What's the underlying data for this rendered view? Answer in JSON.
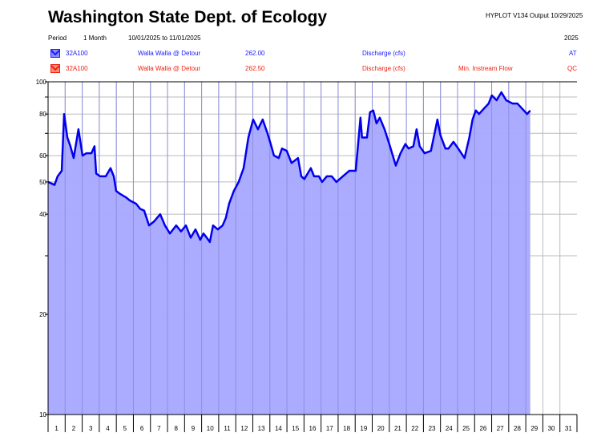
{
  "header": {
    "title": "Washington State Dept. of Ecology",
    "program": "HYPLOT V134  Output 10/29/2025",
    "period_label": "Period",
    "period_value": "1 Month",
    "date_range": "10/01/2025  to  11/01/2025",
    "year": "2025"
  },
  "legend": [
    {
      "icon": "hydrograph-icon",
      "color": "#1a1aff",
      "site": "32A100",
      "name": "Walla Walla @ Detour",
      "code": "262.00",
      "param": "Discharge (cfs)",
      "extra": "",
      "flag": "AT"
    },
    {
      "icon": "hydrograph-icon",
      "color": "#ee2211",
      "site": "32A100",
      "name": "Walla Walla @ Detour",
      "code": "262.50",
      "param": "Discharge (cfs)",
      "extra": "Min. Instream Flow",
      "flag": "QC"
    }
  ],
  "chart_data": {
    "type": "area",
    "y_scale": "log",
    "ylim": [
      10,
      100
    ],
    "xlim": [
      1,
      32
    ],
    "grid": true,
    "y_gridlines": [
      10,
      20,
      30,
      40,
      50,
      60,
      70,
      80,
      90,
      100
    ],
    "y_tick_labels": [
      "100",
      "80",
      "60",
      "50",
      "40",
      "20",
      "10"
    ],
    "x_tick_labels": [
      "1",
      "2",
      "3",
      "4",
      "5",
      "6",
      "7",
      "8",
      "9",
      "10",
      "11",
      "12",
      "13",
      "14",
      "15",
      "16",
      "17",
      "18",
      "19",
      "20",
      "21",
      "22",
      "23",
      "24",
      "25",
      "26",
      "27",
      "28",
      "29",
      "30",
      "31"
    ],
    "line_color": "#0000ee",
    "fill_color": "#a6a6ff",
    "series": [
      {
        "x": [
          1.0,
          1.38,
          1.56,
          1.8,
          1.94,
          2.13,
          2.31,
          2.5,
          2.78,
          3.02,
          3.25,
          3.54,
          3.72,
          3.82,
          4.05,
          4.38,
          4.66,
          4.85,
          4.99,
          5.23,
          5.55,
          5.79,
          6.16,
          6.4,
          6.63,
          6.92,
          7.2,
          7.57,
          7.85,
          8.14,
          8.51,
          8.79,
          9.08,
          9.36,
          9.64,
          9.92,
          10.11,
          10.3,
          10.48,
          10.67,
          10.95,
          11.23,
          11.42,
          11.61,
          11.89,
          12.17,
          12.46,
          12.74,
          13.02,
          13.3,
          13.58,
          13.86,
          14.05,
          14.24,
          14.52,
          14.71,
          14.99,
          15.27,
          15.65,
          15.84,
          16.02,
          16.4,
          16.59,
          16.87,
          17.06,
          17.34,
          17.62,
          17.9,
          18.28,
          18.65,
          19.03,
          19.31,
          19.4,
          19.69,
          19.87,
          20.06,
          20.25,
          20.44,
          20.72,
          21.0,
          21.38,
          21.66,
          21.94,
          22.13,
          22.41,
          22.6,
          22.78,
          23.07,
          23.44,
          23.82,
          24.0,
          24.29,
          24.47,
          24.76,
          25.04,
          25.41,
          25.69,
          25.88,
          26.07,
          26.26,
          26.54,
          26.82,
          27.01,
          27.29,
          27.57,
          27.85,
          28.23,
          28.51,
          28.79,
          29.08,
          29.26
        ],
        "y": [
          50,
          49,
          52,
          54,
          80,
          68,
          64,
          59,
          72,
          60,
          61,
          61,
          64,
          53,
          52,
          52,
          55,
          52,
          47,
          46,
          45,
          44,
          43,
          41.5,
          41,
          37,
          38,
          40,
          37,
          35,
          37,
          35.5,
          37,
          34,
          36,
          33.5,
          35,
          34,
          33,
          37,
          36,
          37,
          39,
          43,
          47,
          50,
          55,
          68,
          77,
          72,
          77,
          70,
          65,
          60,
          59,
          63,
          62,
          57,
          59,
          52,
          51,
          55,
          52,
          52,
          50,
          52,
          52,
          50,
          52,
          54,
          54,
          78,
          68,
          68,
          81,
          82,
          75,
          78,
          72,
          65,
          56,
          61,
          65,
          63,
          64,
          72,
          64,
          61,
          62,
          77,
          69,
          63,
          63,
          66,
          63,
          59,
          68,
          77,
          82,
          80,
          83,
          86,
          91,
          88,
          93,
          88,
          86,
          86,
          83,
          80,
          82
        ]
      }
    ]
  }
}
